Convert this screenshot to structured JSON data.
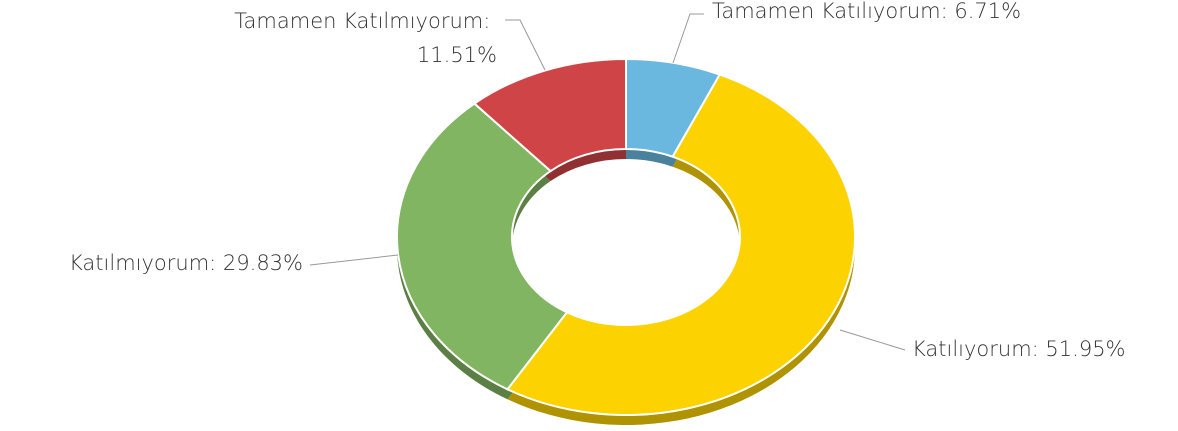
{
  "chart_data": {
    "type": "pie",
    "donut": true,
    "values": [
      6.71,
      51.95,
      29.83,
      11.51
    ],
    "value_labels": [
      "Tamamen Katılıyorum: 6.71%",
      "Katılıyorum: 51.95%",
      "Katılmıyorum: 29.83%",
      "Tamamen Katılmıyorum: 11.51%"
    ],
    "colors": [
      "#6ab8e0",
      "#fcd200",
      "#82b562",
      "#cf4447"
    ]
  }
}
